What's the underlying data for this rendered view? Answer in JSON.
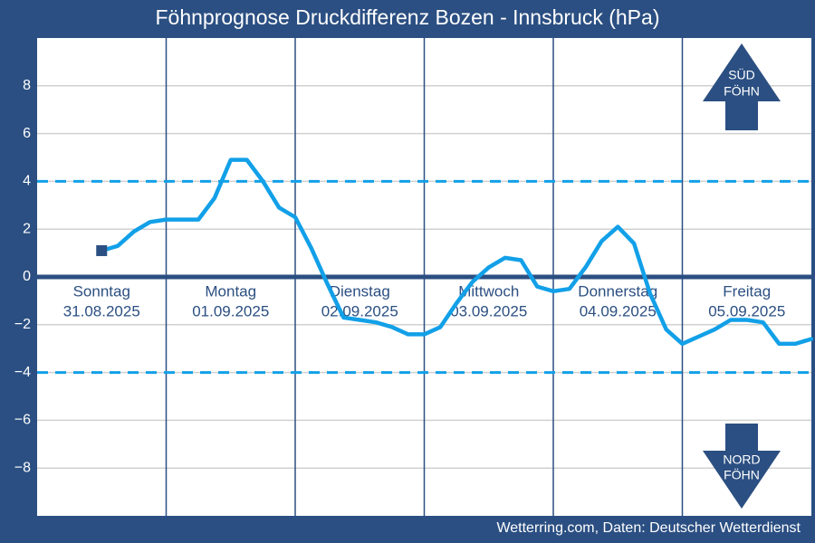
{
  "chart_data": {
    "type": "line",
    "title": "Föhnprognose Druckdifferenz Bozen - Innsbruck (hPa)",
    "source": "Wetterring.com, Daten: Deutscher Wetterdienst",
    "color": "#12a0e8",
    "x": [
      12,
      15,
      18,
      21,
      24,
      27,
      30,
      33,
      36,
      39,
      42,
      45,
      48,
      51,
      54,
      57,
      60,
      63,
      66,
      69,
      72,
      75,
      78,
      81,
      84,
      87,
      90,
      93,
      96,
      99,
      102,
      105,
      108,
      111,
      114,
      117,
      120,
      123,
      126,
      129,
      132,
      135,
      138,
      141,
      144
    ],
    "values": [
      1.1,
      1.3,
      1.9,
      2.3,
      2.4,
      2.4,
      2.4,
      3.3,
      4.9,
      4.9,
      4.0,
      2.9,
      2.5,
      1.2,
      -0.3,
      -1.7,
      -1.8,
      -1.9,
      -2.1,
      -2.4,
      -2.4,
      -2.1,
      -1.1,
      -0.2,
      0.4,
      0.8,
      0.7,
      -0.4,
      -0.6,
      -0.5,
      0.4,
      1.5,
      2.1,
      1.4,
      -0.7,
      -2.2,
      -2.8,
      -2.5,
      -2.2,
      -1.8,
      -1.8,
      -1.9,
      -2.8,
      -2.8,
      -2.6
    ],
    "xlim": [
      0,
      144
    ],
    "xticks": [
      24,
      48,
      72,
      96,
      120
    ],
    "ylim": [
      -10,
      10
    ],
    "yticks": [
      {
        "value": -8,
        "label": "−8"
      },
      {
        "value": -6,
        "label": "−6"
      },
      {
        "value": -4,
        "label": "−4"
      },
      {
        "value": -2,
        "label": "−2"
      },
      0,
      2,
      4,
      6,
      8
    ],
    "grid": true,
    "reference_lines": [
      4,
      -4
    ],
    "days": [
      {
        "name": "Sonntag",
        "date": "31.08.2025"
      },
      {
        "name": "Montag",
        "date": "01.09.2025"
      },
      {
        "name": "Dienstag",
        "date": "02.09.2025"
      },
      {
        "name": "Mittwoch",
        "date": "03.09.2025"
      },
      {
        "name": "Donnerstag",
        "date": "04.09.2025"
      },
      {
        "name": "Freitag",
        "date": "05.09.2025"
      }
    ],
    "annotations": [
      [
        "SÜD",
        "FÖHN"
      ],
      [
        "NORD",
        "FÖHN"
      ]
    ]
  }
}
